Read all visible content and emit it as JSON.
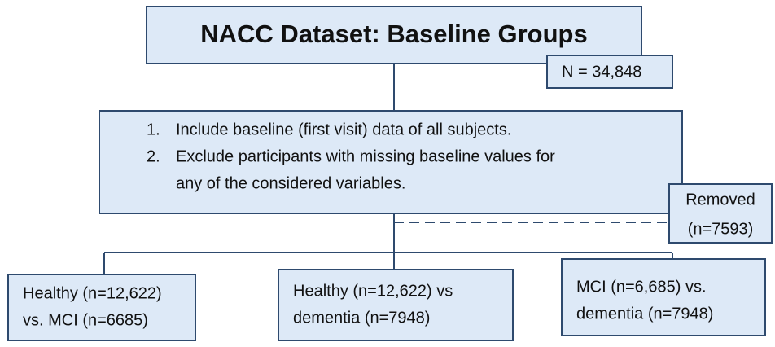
{
  "title": "NACC Dataset: Baseline Groups",
  "total": "N = 34,848",
  "steps": [
    {
      "number": "1.",
      "lines": [
        "Include baseline (first visit) data of all subjects."
      ]
    },
    {
      "number": "2.",
      "lines": [
        "Exclude participants with missing baseline values for",
        "any of the considered variables."
      ]
    }
  ],
  "removed": {
    "lines": [
      "Removed",
      "(n=7593)"
    ]
  },
  "groups": [
    {
      "lines": [
        "Healthy (n=12,622)",
        "vs. MCI (n=6685)"
      ]
    },
    {
      "lines": [
        "Healthy (n=12,622) vs",
        "dementia (n=7948)"
      ]
    },
    {
      "lines": [
        "MCI (n=6,685) vs.",
        "dementia (n=7948)"
      ]
    }
  ]
}
